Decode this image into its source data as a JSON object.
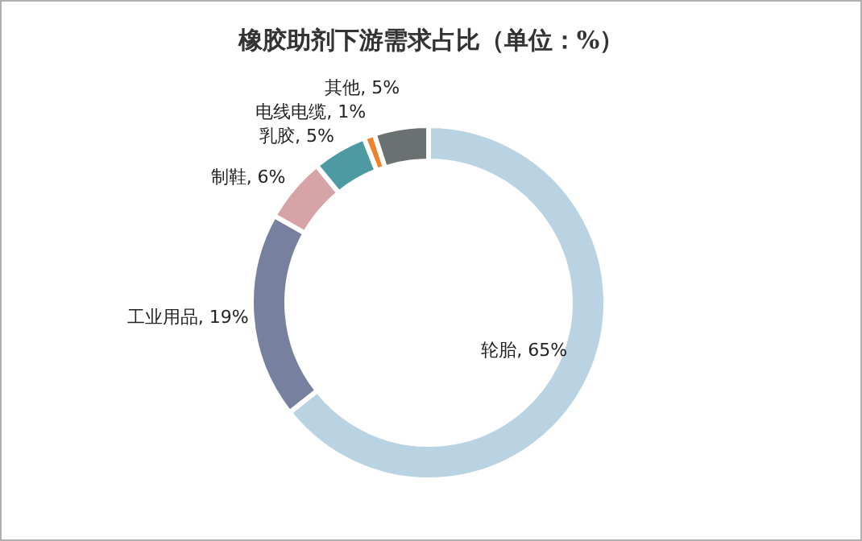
{
  "chart_data": {
    "type": "donut",
    "title": "橡胶助剂下游需求占比（单位：%）",
    "categories": [
      "轮胎",
      "工业用品",
      "制鞋",
      "乳胶",
      "电线电缆",
      "其他"
    ],
    "values": [
      65,
      19,
      6,
      5,
      1,
      5
    ],
    "colors": [
      "#b9d3e2",
      "#77809f",
      "#d6a3a6",
      "#4d9aa3",
      "#f0822e",
      "#6b7171"
    ],
    "value_labels": [
      ", 65%",
      ", 19%",
      ", 6%",
      ", 5%",
      ", 1%",
      ", 5%"
    ]
  }
}
